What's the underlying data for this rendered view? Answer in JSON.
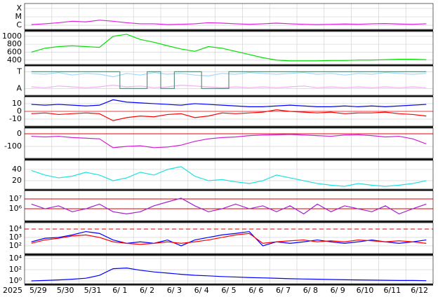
{
  "chart_data": [
    {
      "type": "line",
      "log": true,
      "ylim": [
        3.2e-07,
        0.00038
      ],
      "yticks": [
        {
          "value": 0.0001,
          "label": "X"
        },
        {
          "value": 1e-05,
          "label": "M"
        },
        {
          "value": 1e-06,
          "label": "C"
        }
      ],
      "series": [
        {
          "color": "#e020e0",
          "values": [
            1.2e-06,
            1.5e-06,
            2e-06,
            3e-06,
            2.5e-06,
            4e-06,
            3e-06,
            2e-06,
            1.5e-06,
            1.5e-06,
            1.2e-06,
            1.3e-06,
            1.5e-06,
            2e-06,
            1.8e-06,
            1.5e-06,
            1.3e-06,
            1.5e-06,
            1.8e-06,
            1.5e-06,
            1.3e-06,
            1.2e-06,
            1.3e-06,
            1.4e-06,
            1.3e-06,
            1.5e-06,
            1.6e-06,
            1.4e-06,
            1.3e-06,
            1.5e-06
          ]
        }
      ]
    },
    {
      "type": "line",
      "ylim": [
        290,
        1120
      ],
      "yticks": [
        400,
        600,
        800,
        1000
      ],
      "series": [
        {
          "color": "#00e000",
          "values": [
            600,
            700,
            740,
            760,
            740,
            720,
            1000,
            1050,
            920,
            850,
            760,
            680,
            620,
            740,
            700,
            620,
            540,
            460,
            400,
            380,
            380,
            380,
            390,
            390,
            400,
            400,
            410,
            420,
            420,
            410
          ]
        }
      ]
    },
    {
      "type": "line",
      "ylim": [
        -0.4,
        1.35
      ],
      "yticks": [
        {
          "value": 1,
          "label": "T"
        },
        {
          "value": 0,
          "label": "A"
        }
      ],
      "series": [
        {
          "color": "#9fd8ff",
          "values": [
            0.9,
            0.85,
            0.95,
            0.8,
            0.9,
            0.85,
            0.7,
            0.9,
            0.8,
            0.95,
            0.85,
            0.9,
            0.8,
            0.75,
            0.9,
            0.85,
            0.95,
            0.9,
            0.85,
            0.9,
            0.95,
            0.85,
            0.9,
            0.8,
            0.9,
            0.85,
            0.95,
            0.9,
            0.85,
            0.9
          ]
        },
        {
          "color": "#f0b0f0",
          "values": [
            0.1,
            0.05,
            0.15,
            0.1,
            0.05,
            0.1,
            0.2,
            0.1,
            0.15,
            0.05,
            0.1,
            0.2,
            0.15,
            0.1,
            0.05,
            0.1,
            0.05,
            0.1,
            0.05,
            0.1,
            0.15,
            0.05,
            0.1,
            0.05,
            0.1,
            0.05,
            0.1,
            0.05,
            0.1,
            0.05
          ]
        },
        {
          "color": "#609080",
          "step": true,
          "values": [
            1,
            1,
            1,
            1,
            1,
            1,
            1,
            0,
            0,
            1,
            0,
            1,
            1,
            0,
            0,
            1,
            1,
            1,
            1,
            1,
            1,
            1,
            1,
            1,
            1,
            1,
            1,
            1,
            1,
            1
          ]
        }
      ]
    },
    {
      "type": "line",
      "ylim": [
        -19,
        19
      ],
      "yticks": [
        10,
        0,
        -10
      ],
      "hlines": [
        0
      ],
      "hline_color": "#e04040",
      "series": [
        {
          "color": "#0000ff",
          "values": [
            9,
            8,
            9,
            8,
            7,
            8,
            15,
            12,
            11,
            10,
            9,
            8,
            10,
            9,
            8,
            7,
            6,
            6,
            7,
            8,
            7,
            6,
            6,
            7,
            6,
            7,
            6,
            7,
            8,
            9
          ]
        },
        {
          "color": "#ff0000",
          "values": [
            -3,
            -2,
            -4,
            -3,
            -2,
            -3,
            -12,
            -8,
            -6,
            -7,
            -4,
            -3,
            -8,
            -6,
            -2,
            -3,
            -2,
            -1,
            2,
            0,
            -1,
            -2,
            -1,
            -3,
            -2,
            -2,
            -1,
            -3,
            -4,
            -6
          ]
        }
      ]
    },
    {
      "type": "line",
      "ylim": [
        -194,
        44
      ],
      "yticks": [
        0,
        -100
      ],
      "hlines": [
        0
      ],
      "hline_color": "#e00000",
      "series": [
        {
          "color": "#d020d0",
          "values": [
            -20,
            -25,
            -20,
            -30,
            -35,
            -40,
            -110,
            -100,
            -95,
            -110,
            -105,
            -90,
            -60,
            -40,
            -30,
            -25,
            -15,
            -10,
            -8,
            -5,
            -10,
            -15,
            -20,
            -10,
            -8,
            -15,
            -25,
            -20,
            -40,
            -80
          ]
        }
      ]
    },
    {
      "type": "line",
      "ylim": [
        5,
        56
      ],
      "yticks": [
        40,
        20
      ],
      "series": [
        {
          "color": "#20e0e0",
          "values": [
            38,
            30,
            25,
            28,
            35,
            30,
            20,
            25,
            35,
            30,
            40,
            45,
            28,
            20,
            22,
            18,
            15,
            20,
            30,
            25,
            20,
            15,
            12,
            10,
            15,
            12,
            10,
            12,
            15,
            20
          ]
        }
      ]
    },
    {
      "type": "line",
      "log": true,
      "ylim": [
        62000,
        72000000
      ],
      "yticks": [
        {
          "value": 10000000,
          "label": "10⁷"
        },
        {
          "value": 1000000,
          "label": "10⁶"
        }
      ],
      "hlines": [
        10000000,
        1000000
      ],
      "hline_color": "#e00000",
      "series": [
        {
          "color": "#a020d0",
          "values": [
            3000000.0,
            1000000.0,
            2000000.0,
            500000.0,
            1000000.0,
            3000000.0,
            500000.0,
            300000.0,
            500000.0,
            2000000.0,
            5000000.0,
            12000000.0,
            2000000.0,
            500000.0,
            1000000.0,
            3000000.0,
            1000000.0,
            2000000.0,
            500000.0,
            2000000.0,
            300000.0,
            3000000.0,
            500000.0,
            2000000.0,
            1000000.0,
            500000.0,
            2000000.0,
            300000.0,
            1000000.0,
            3000000.0
          ]
        }
      ]
    },
    {
      "type": "line",
      "log": true,
      "ylim": [
        12,
        56000
      ],
      "yticks": [
        {
          "value": 10000,
          "label": "10⁴"
        },
        {
          "value": 1000,
          "label": "10³"
        },
        {
          "value": 100,
          "label": "10²"
        }
      ],
      "hlines": [
        10000
      ],
      "hline_color": "#e00000",
      "hline_dash": true,
      "series": [
        {
          "color": "#0000ff",
          "values": [
            300,
            800,
            1000,
            2000,
            5000,
            3000,
            500,
            200,
            300,
            200,
            500,
            100,
            500,
            1000,
            2000,
            3000,
            5000,
            100,
            300,
            200,
            300,
            500,
            300,
            200,
            300,
            500,
            300,
            200,
            300,
            500
          ]
        },
        {
          "color": "#ff0000",
          "values": [
            200,
            500,
            800,
            1500,
            2000,
            1000,
            300,
            200,
            150,
            200,
            300,
            200,
            300,
            500,
            1000,
            2000,
            3000,
            200,
            300,
            400,
            500,
            300,
            400,
            300,
            500,
            400,
            300,
            400,
            300,
            200
          ]
        }
      ]
    },
    {
      "type": "line",
      "log": true,
      "ylim": [
        0.32,
        31600
      ],
      "yticks": [
        {
          "value": 10000,
          "label": "10⁴"
        },
        {
          "value": 100,
          "label": "10²"
        },
        {
          "value": 1,
          "label": "10⁰"
        }
      ],
      "series": [
        {
          "color": "#0000ff",
          "values": [
            1,
            1.2,
            1.5,
            2,
            3,
            10,
            150,
            200,
            80,
            40,
            25,
            15,
            10,
            8,
            6,
            5,
            4,
            3.5,
            3,
            2.5,
            2.2,
            2,
            1.8,
            1.6,
            1.5,
            1.4,
            1.3,
            1.2,
            1.2,
            1.1
          ]
        }
      ]
    }
  ],
  "x_axis": {
    "year": "2025",
    "days": [
      "5/29",
      "5/30",
      "5/31",
      "6/ 1",
      "6/ 2",
      "6/ 3",
      "6/ 4",
      "6/ 5",
      "6/ 6",
      "6/ 7",
      "6/ 8",
      "6/ 9",
      "6/10",
      "6/11",
      "6/12"
    ]
  }
}
